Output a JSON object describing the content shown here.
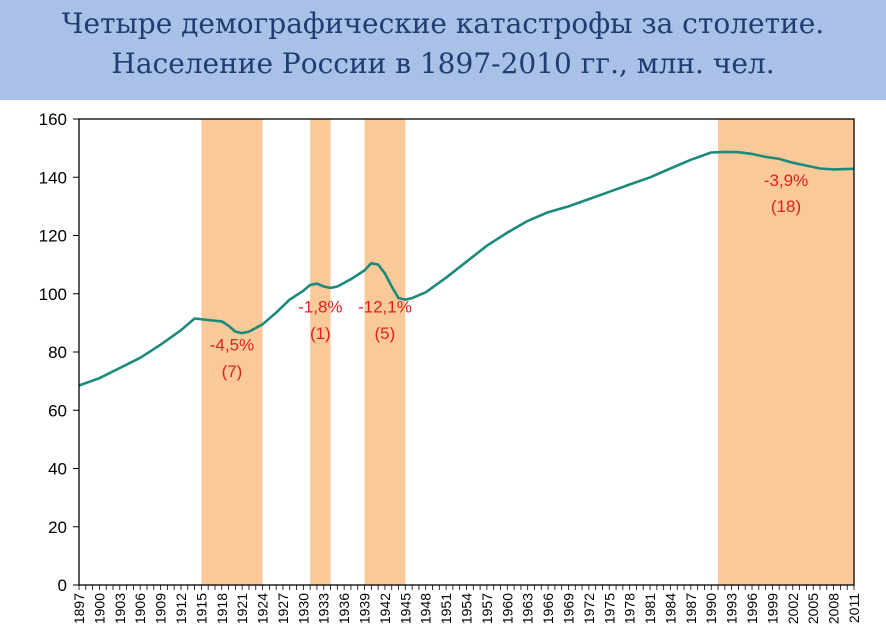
{
  "title": {
    "line1": "Четыре демографические катастрофы за столетие.",
    "line2": "Население России в 1897-2010 гг., млн. чел."
  },
  "colors": {
    "title_bg": "#a9c1e6",
    "title_text": "#1f3c73",
    "line": "#1b8a7a",
    "band": "#f9c999",
    "annotation": "#e02020"
  },
  "chart_data": {
    "type": "line",
    "x_range": [
      1897,
      2011
    ],
    "ylim": [
      0,
      160
    ],
    "y_ticks": [
      0,
      20,
      40,
      60,
      80,
      100,
      120,
      140,
      160
    ],
    "x_tick_labels": [
      "1897",
      "1900",
      "1903",
      "1906",
      "1909",
      "1912",
      "1915",
      "1918",
      "1921",
      "1924",
      "1927",
      "1930",
      "1933",
      "1936",
      "1939",
      "1942",
      "1945",
      "1948",
      "1951",
      "1954",
      "1957",
      "1960",
      "1963",
      "1966",
      "1969",
      "1972",
      "1975",
      "1978",
      "1981",
      "1984",
      "1987",
      "1990",
      "1993",
      "1996",
      "1999",
      "2002",
      "2005",
      "2008",
      "2011"
    ],
    "grid": false,
    "series": [
      {
        "points": [
          [
            1897,
            68.5
          ],
          [
            1900,
            71
          ],
          [
            1903,
            74.5
          ],
          [
            1906,
            78
          ],
          [
            1909,
            82.5
          ],
          [
            1912,
            87.5
          ],
          [
            1914,
            91.5
          ],
          [
            1916,
            91
          ],
          [
            1918,
            90.5
          ],
          [
            1919,
            89
          ],
          [
            1920,
            87
          ],
          [
            1921,
            86.5
          ],
          [
            1922,
            87
          ],
          [
            1924,
            89.5
          ],
          [
            1926,
            93.5
          ],
          [
            1928,
            98
          ],
          [
            1930,
            101
          ],
          [
            1931,
            103
          ],
          [
            1932,
            103.5
          ],
          [
            1933,
            102.5
          ],
          [
            1934,
            102
          ],
          [
            1935,
            102.5
          ],
          [
            1937,
            105
          ],
          [
            1939,
            108
          ],
          [
            1940,
            110.5
          ],
          [
            1941,
            110
          ],
          [
            1942,
            107
          ],
          [
            1943,
            102.5
          ],
          [
            1944,
            98.5
          ],
          [
            1945,
            98
          ],
          [
            1946,
            98.5
          ],
          [
            1948,
            100.5
          ],
          [
            1951,
            105.5
          ],
          [
            1954,
            111
          ],
          [
            1957,
            116.5
          ],
          [
            1960,
            121
          ],
          [
            1963,
            125
          ],
          [
            1966,
            128
          ],
          [
            1969,
            130
          ],
          [
            1972,
            132.5
          ],
          [
            1975,
            135
          ],
          [
            1978,
            137.5
          ],
          [
            1981,
            140
          ],
          [
            1984,
            143
          ],
          [
            1987,
            146
          ],
          [
            1990,
            148.5
          ],
          [
            1992,
            148.7
          ],
          [
            1994,
            148.6
          ],
          [
            1996,
            148
          ],
          [
            1998,
            147
          ],
          [
            2000,
            146.3
          ],
          [
            2002,
            145
          ],
          [
            2004,
            144
          ],
          [
            2006,
            143
          ],
          [
            2008,
            142.7
          ],
          [
            2011,
            142.9
          ]
        ]
      }
    ],
    "bands": [
      {
        "x0": 1915,
        "x1": 1924,
        "label": "-4,5%",
        "sublabel": "(7)",
        "label_y": 80.5,
        "sublabel_y": 71.5
      },
      {
        "x0": 1931,
        "x1": 1934,
        "label": "-1,8%",
        "sublabel": "(1)",
        "label_y": 93.5,
        "sublabel_y": 84.5
      },
      {
        "x0": 1939,
        "x1": 1945,
        "label": "-12,1%",
        "sublabel": "(5)",
        "label_y": 93.5,
        "sublabel_y": 84.5
      },
      {
        "x0": 1991,
        "x1": 2011.3,
        "label": "-3,9%",
        "sublabel": "(18)",
        "label_y": 137,
        "sublabel_y": 128
      }
    ]
  }
}
